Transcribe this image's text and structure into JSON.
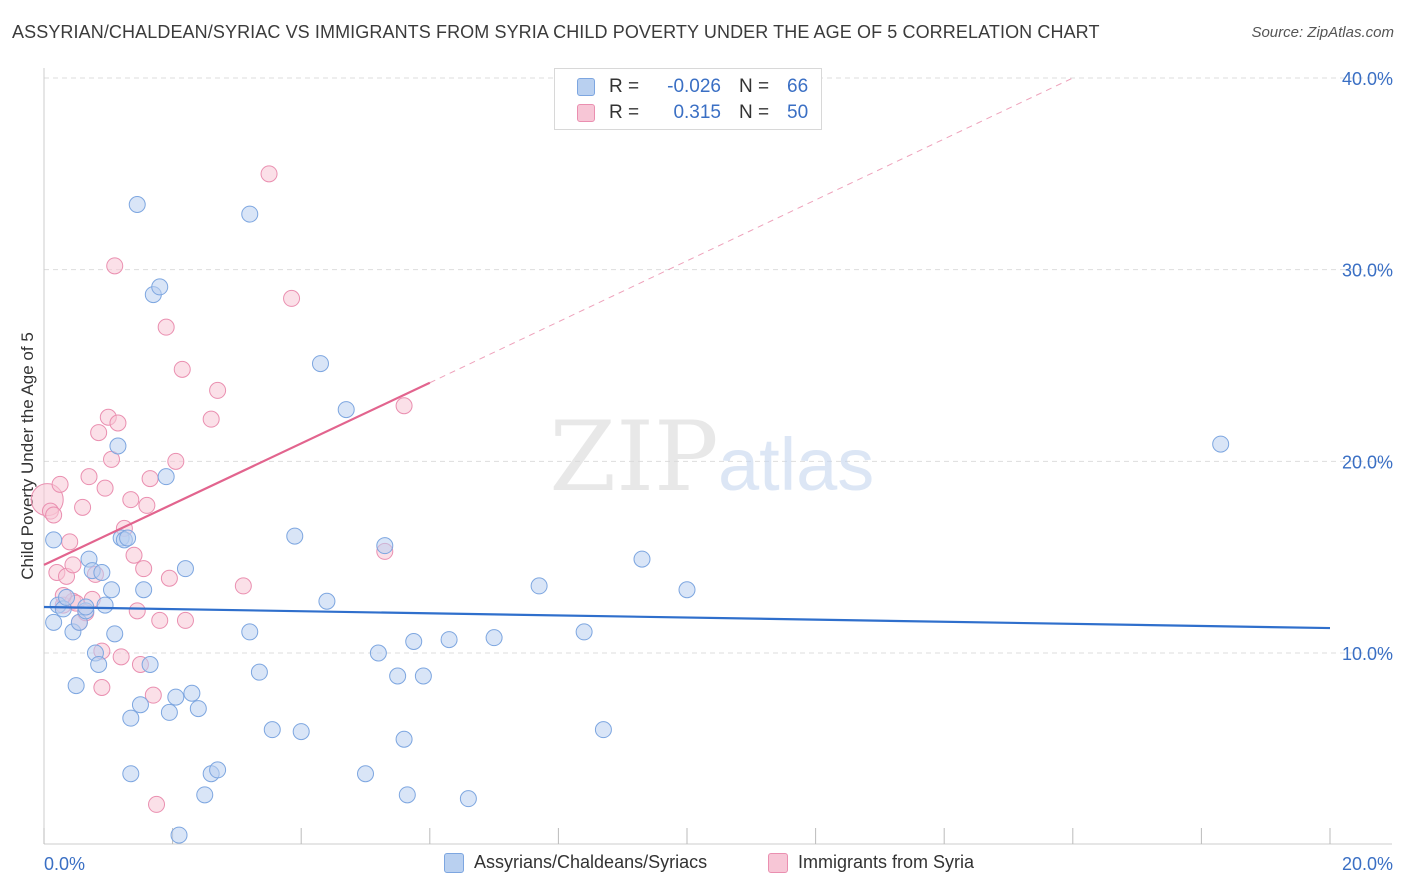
{
  "title": "ASSYRIAN/CHALDEAN/SYRIAC VS IMMIGRANTS FROM SYRIA CHILD POVERTY UNDER THE AGE OF 5 CORRELATION CHART",
  "source": "Source: ZipAtlas.com",
  "watermark": {
    "zip": "ZIP",
    "atlas": "atlas"
  },
  "legend_top": [
    {
      "r_label": "R =",
      "r_value": "-0.026",
      "n_label": "N =",
      "n_value": "66"
    },
    {
      "r_label": "R =",
      "r_value": "0.315",
      "n_label": "N =",
      "n_value": "50"
    }
  ],
  "colors": {
    "blue_fill": "#b9d0f0",
    "blue_stroke": "#7da6e0",
    "blue_line": "#2f6fcc",
    "pink_fill": "#f7c6d6",
    "pink_stroke": "#ea8fb0",
    "pink_line": "#e2648e",
    "tick_text": "#3a6fc4",
    "grid": "#dddddd"
  },
  "chart_data": {
    "type": "scatter",
    "title": "ASSYRIAN/CHALDEAN/SYRIAC VS IMMIGRANTS FROM SYRIA CHILD POVERTY UNDER THE AGE OF 5 CORRELATION CHART",
    "xlabel": "",
    "ylabel": "Child Poverty Under the Age of 5",
    "xlim": [
      0,
      20
    ],
    "ylim": [
      0,
      40
    ],
    "x_tick_labels": [
      "0.0%",
      "20.0%"
    ],
    "y_ticks": [
      10,
      20,
      30,
      40
    ],
    "y_tick_labels": [
      "10.0%",
      "20.0%",
      "30.0%",
      "40.0%"
    ],
    "grid": true,
    "legend_position": "bottom-center",
    "series": [
      {
        "name": "Assyrians/Chaldeans/Syriacs",
        "r": -0.026,
        "n": 66,
        "trend": {
          "x0": 0,
          "y0": 12.4,
          "x1": 20,
          "y1": 11.3
        },
        "points": [
          [
            0.15,
            15.9
          ],
          [
            0.15,
            11.6
          ],
          [
            0.22,
            12.5
          ],
          [
            0.3,
            12.3
          ],
          [
            0.35,
            12.9
          ],
          [
            0.45,
            11.1
          ],
          [
            0.55,
            11.6
          ],
          [
            0.65,
            12.2
          ],
          [
            0.7,
            14.9
          ],
          [
            0.75,
            14.3
          ],
          [
            0.8,
            10.0
          ],
          [
            0.85,
            9.4
          ],
          [
            0.5,
            8.3
          ],
          [
            0.9,
            14.2
          ],
          [
            0.95,
            12.5
          ],
          [
            1.05,
            13.3
          ],
          [
            1.1,
            11.0
          ],
          [
            1.15,
            20.8
          ],
          [
            1.2,
            16.0
          ],
          [
            1.25,
            15.9
          ],
          [
            1.35,
            6.6
          ],
          [
            1.35,
            3.7
          ],
          [
            1.45,
            33.4
          ],
          [
            1.5,
            7.3
          ],
          [
            1.55,
            13.3
          ],
          [
            1.65,
            9.4
          ],
          [
            1.7,
            28.7
          ],
          [
            1.8,
            29.1
          ],
          [
            1.9,
            19.2
          ],
          [
            1.95,
            6.9
          ],
          [
            2.05,
            7.7
          ],
          [
            2.1,
            0.5
          ],
          [
            2.2,
            14.4
          ],
          [
            2.3,
            7.9
          ],
          [
            2.4,
            7.1
          ],
          [
            2.5,
            2.6
          ],
          [
            2.6,
            3.7
          ],
          [
            2.7,
            3.9
          ],
          [
            3.2,
            32.9
          ],
          [
            3.2,
            11.1
          ],
          [
            3.35,
            9.0
          ],
          [
            3.55,
            6.0
          ],
          [
            3.9,
            16.1
          ],
          [
            4.0,
            5.9
          ],
          [
            4.3,
            25.1
          ],
          [
            4.4,
            12.7
          ],
          [
            4.7,
            22.7
          ],
          [
            5.0,
            3.7
          ],
          [
            5.2,
            10.0
          ],
          [
            5.3,
            15.6
          ],
          [
            5.5,
            8.8
          ],
          [
            5.6,
            5.5
          ],
          [
            5.65,
            2.6
          ],
          [
            5.75,
            10.6
          ],
          [
            5.9,
            8.8
          ],
          [
            6.3,
            10.7
          ],
          [
            6.6,
            2.4
          ],
          [
            7.0,
            10.8
          ],
          [
            7.7,
            13.5
          ],
          [
            8.4,
            11.1
          ],
          [
            8.7,
            6.0
          ],
          [
            9.3,
            14.9
          ],
          [
            10.0,
            13.3
          ],
          [
            18.3,
            20.9
          ],
          [
            1.3,
            16.0
          ],
          [
            0.65,
            12.4
          ]
        ]
      },
      {
        "name": "Immigrants from Syria",
        "r": 0.315,
        "n": 50,
        "trend": {
          "x0": 0,
          "y0": 14.6,
          "x1": 6.0,
          "y1": 24.1,
          "extend_to_x": 16.0,
          "extend_to_y": 40.0
        },
        "points": [
          [
            0.05,
            18.0
          ],
          [
            0.1,
            17.4
          ],
          [
            0.15,
            17.2
          ],
          [
            0.2,
            14.2
          ],
          [
            0.25,
            18.8
          ],
          [
            0.3,
            12.5
          ],
          [
            0.35,
            14.0
          ],
          [
            0.4,
            15.8
          ],
          [
            0.45,
            12.7
          ],
          [
            0.5,
            12.6
          ],
          [
            0.55,
            11.6
          ],
          [
            0.6,
            17.6
          ],
          [
            0.7,
            19.2
          ],
          [
            0.75,
            12.8
          ],
          [
            0.8,
            14.1
          ],
          [
            0.85,
            21.5
          ],
          [
            0.9,
            10.1
          ],
          [
            0.9,
            8.2
          ],
          [
            0.95,
            18.6
          ],
          [
            1.0,
            22.3
          ],
          [
            1.05,
            20.1
          ],
          [
            1.1,
            30.2
          ],
          [
            1.15,
            22.0
          ],
          [
            1.2,
            9.8
          ],
          [
            1.25,
            16.5
          ],
          [
            1.35,
            18.0
          ],
          [
            1.4,
            15.1
          ],
          [
            1.45,
            12.2
          ],
          [
            1.5,
            9.4
          ],
          [
            1.55,
            14.4
          ],
          [
            1.6,
            17.7
          ],
          [
            1.65,
            19.1
          ],
          [
            1.7,
            7.8
          ],
          [
            1.75,
            2.1
          ],
          [
            1.8,
            11.7
          ],
          [
            1.9,
            27.0
          ],
          [
            1.95,
            13.9
          ],
          [
            2.05,
            20.0
          ],
          [
            2.15,
            24.8
          ],
          [
            2.2,
            11.7
          ],
          [
            2.6,
            22.2
          ],
          [
            2.7,
            23.7
          ],
          [
            3.1,
            13.5
          ],
          [
            3.5,
            35.0
          ],
          [
            3.85,
            28.5
          ],
          [
            5.3,
            15.3
          ],
          [
            5.6,
            22.9
          ],
          [
            0.3,
            13.0
          ],
          [
            0.65,
            12.1
          ],
          [
            0.45,
            14.6
          ]
        ]
      }
    ]
  }
}
